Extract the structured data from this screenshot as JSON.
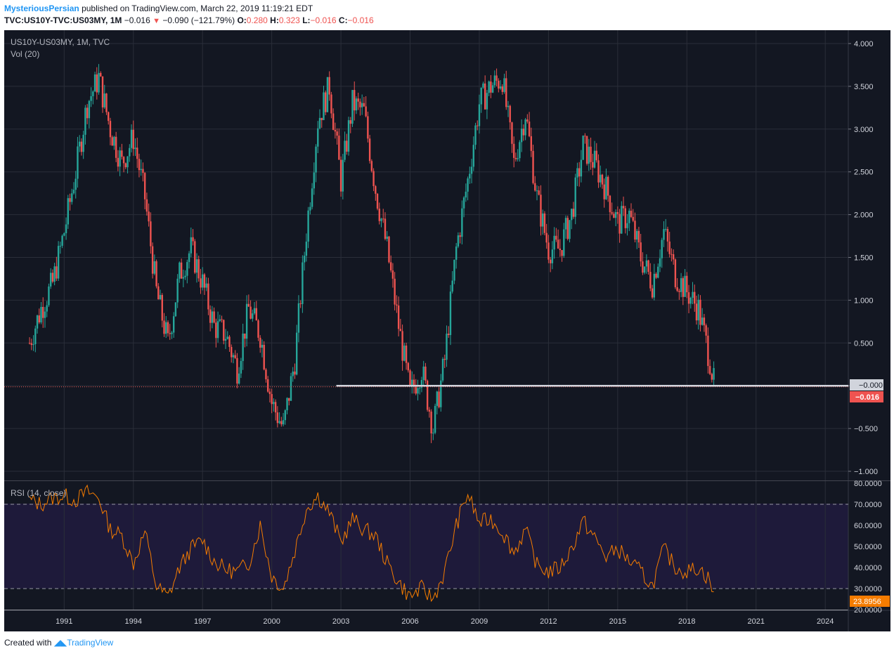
{
  "header": {
    "author": "MysteriousPersian",
    "published": "published on TradingView.com, March 22, 2019 11:19:21 EDT",
    "symbol": "TVC:US10Y-TVC:US03MY, 1M",
    "change": "−0.016",
    "change_pct": "−0.090 (−121.79%)",
    "o_label": "O:",
    "o": "0.280",
    "h_label": "H:",
    "h": "0.323",
    "l_label": "L:",
    "l": "−0.016",
    "c_label": "C:",
    "c": "−0.016"
  },
  "main_pane": {
    "legend_title": "US10Y-US03MY, 1M, TVC",
    "legend_vol": "Vol (20)",
    "price_ticks": [
      "4.000",
      "3.500",
      "3.000",
      "2.500",
      "2.000",
      "1.500",
      "1.000",
      "0.500",
      "0.000",
      "−0.500",
      "−1.000"
    ],
    "zero_label": "−0.000",
    "last_label": "−0.016"
  },
  "rsi_pane": {
    "legend": "RSI (14, close)",
    "ticks": [
      "80.0000",
      "70.0000",
      "60.0000",
      "50.0000",
      "40.0000",
      "30.0000",
      "20.0000"
    ],
    "last_label": "23.8956"
  },
  "x_axis": [
    "1991",
    "1994",
    "1997",
    "2000",
    "2003",
    "2006",
    "2009",
    "2012",
    "2015",
    "2018",
    "2021",
    "2024"
  ],
  "footer": {
    "prefix": "Created with",
    "brand": "TradingView"
  },
  "colors": {
    "background": "#131722",
    "up": "#26a69a",
    "down": "#ef5350",
    "rsi": "#f57c00",
    "rsi_band": "#1e1a3a"
  },
  "chart_data": [
    {
      "type": "line",
      "title": "US10Y-US03MY, 1M, TVC",
      "note": "monthly yield spread (candles), approximate closing values",
      "x": [
        1989.5,
        1990,
        1990.5,
        1991,
        1991.5,
        1992,
        1992.5,
        1993,
        1993.5,
        1994,
        1994.5,
        1995,
        1995.5,
        1996,
        1996.5,
        1997,
        1997.5,
        1998,
        1998.5,
        1999,
        1999.5,
        2000,
        2000.5,
        2001,
        2001.5,
        2002,
        2002.5,
        2003,
        2003.5,
        2004,
        2004.5,
        2005,
        2005.5,
        2006,
        2006.5,
        2007,
        2007.5,
        2008,
        2008.5,
        2009,
        2009.5,
        2010,
        2010.5,
        2011,
        2011.5,
        2012,
        2012.5,
        2013,
        2013.5,
        2014,
        2014.5,
        2015,
        2015.5,
        2016,
        2016.5,
        2017,
        2017.5,
        2018,
        2018.5,
        2019,
        2019.2
      ],
      "y": [
        0.5,
        0.9,
        1.2,
        1.8,
        2.5,
        3.3,
        3.6,
        3.0,
        2.6,
        2.9,
        2.2,
        1.1,
        0.5,
        1.3,
        1.6,
        1.2,
        0.7,
        0.6,
        0.2,
        0.9,
        0.6,
        -0.2,
        -0.5,
        0.3,
        1.8,
        3.1,
        3.5,
        2.4,
        3.3,
        3.2,
        2.3,
        1.6,
        0.7,
        -0.1,
        0.2,
        -0.5,
        0.3,
        1.6,
        2.4,
        3.3,
        3.5,
        3.6,
        2.6,
        3.2,
        2.2,
        1.6,
        1.6,
        2.0,
        2.8,
        2.6,
        2.3,
        1.9,
        2.0,
        1.5,
        1.2,
        1.8,
        1.3,
        1.1,
        0.9,
        0.3,
        -0.016
      ],
      "ylim": [
        -1.0,
        4.0
      ],
      "xlim": [
        1988.4,
        2025.0
      ],
      "hline": 0.0
    },
    {
      "type": "line",
      "title": "RSI (14, close)",
      "x": [
        1989.5,
        1990,
        1990.5,
        1991,
        1991.5,
        1992,
        1992.5,
        1993,
        1993.5,
        1994,
        1994.5,
        1995,
        1995.5,
        1996,
        1996.5,
        1997,
        1997.5,
        1998,
        1998.5,
        1999,
        1999.5,
        2000,
        2000.5,
        2001,
        2001.5,
        2002,
        2002.5,
        2003,
        2003.5,
        2004,
        2004.5,
        2005,
        2005.5,
        2006,
        2006.5,
        2007,
        2007.5,
        2008,
        2008.5,
        2009,
        2009.5,
        2010,
        2010.5,
        2011,
        2011.5,
        2012,
        2012.5,
        2013,
        2013.5,
        2014,
        2014.5,
        2015,
        2015.5,
        2016,
        2016.5,
        2017,
        2017.5,
        2018,
        2018.5,
        2019,
        2019.2
      ],
      "y": [
        72,
        70,
        73,
        74,
        72,
        76,
        73,
        58,
        55,
        42,
        57,
        31,
        26,
        40,
        49,
        53,
        43,
        39,
        38,
        42,
        60,
        36,
        30,
        48,
        68,
        74,
        66,
        52,
        63,
        58,
        55,
        42,
        33,
        26,
        30,
        25,
        38,
        60,
        75,
        61,
        63,
        57,
        47,
        58,
        41,
        38,
        40,
        49,
        62,
        54,
        45,
        49,
        43,
        38,
        31,
        49,
        40,
        38,
        40,
        34,
        24
      ],
      "ylim": [
        20,
        80
      ],
      "bands": [
        30,
        70
      ]
    }
  ]
}
